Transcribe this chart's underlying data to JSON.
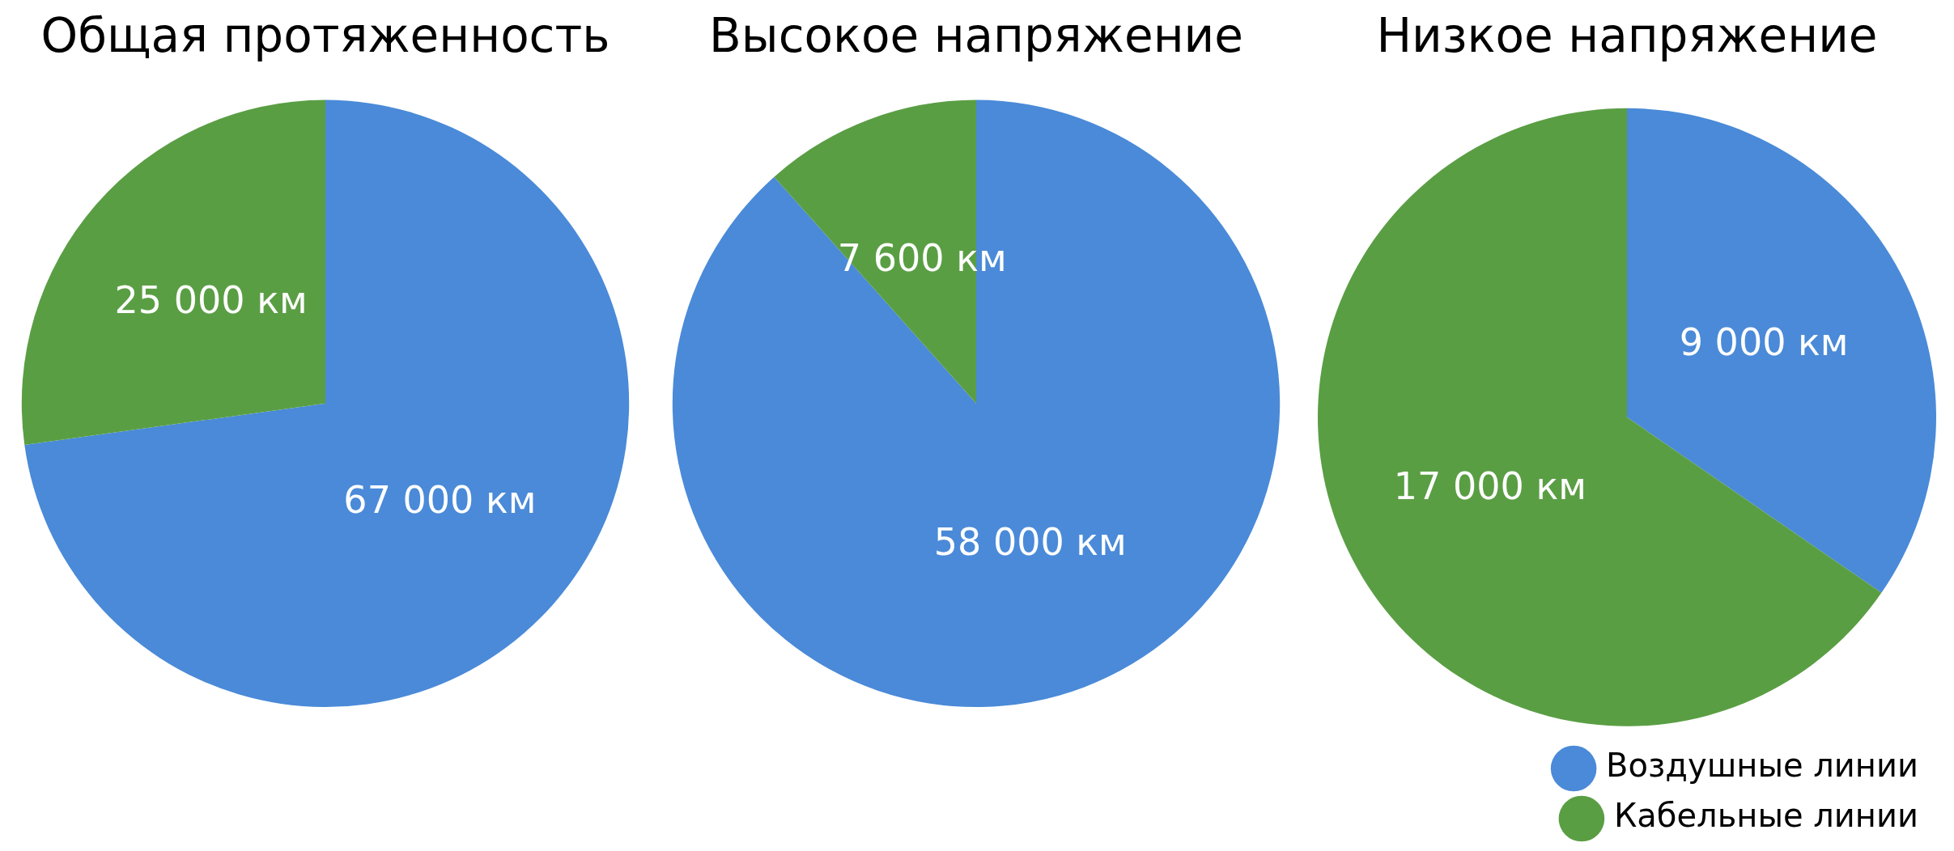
{
  "chart_data": [
    {
      "type": "pie",
      "title": "Общая протяженность",
      "categories": [
        null,
        null
      ],
      "values": [
        67000,
        25000
      ],
      "value_labels": [
        "67 000 км",
        "25 000 км"
      ],
      "colors": [
        "#4a8ad8",
        "#5a9e44"
      ],
      "legend": false
    },
    {
      "type": "pie",
      "title": "Высокое напряжение",
      "categories": [
        null,
        null
      ],
      "values": [
        58000,
        7600
      ],
      "value_labels": [
        "58 000 км",
        "7 600 км"
      ],
      "colors": [
        "#4a8ad8",
        "#5a9e44"
      ],
      "legend": false
    },
    {
      "type": "pie",
      "title": "Низкое напряжение",
      "categories": [
        "Воздушные линии",
        "Кабельные линии"
      ],
      "values": [
        9000,
        17000
      ],
      "value_labels": [
        "9 000 км",
        "17 000 км"
      ],
      "colors": [
        "#4a8ad8",
        "#5a9e44"
      ],
      "legend": "bottom right"
    }
  ]
}
